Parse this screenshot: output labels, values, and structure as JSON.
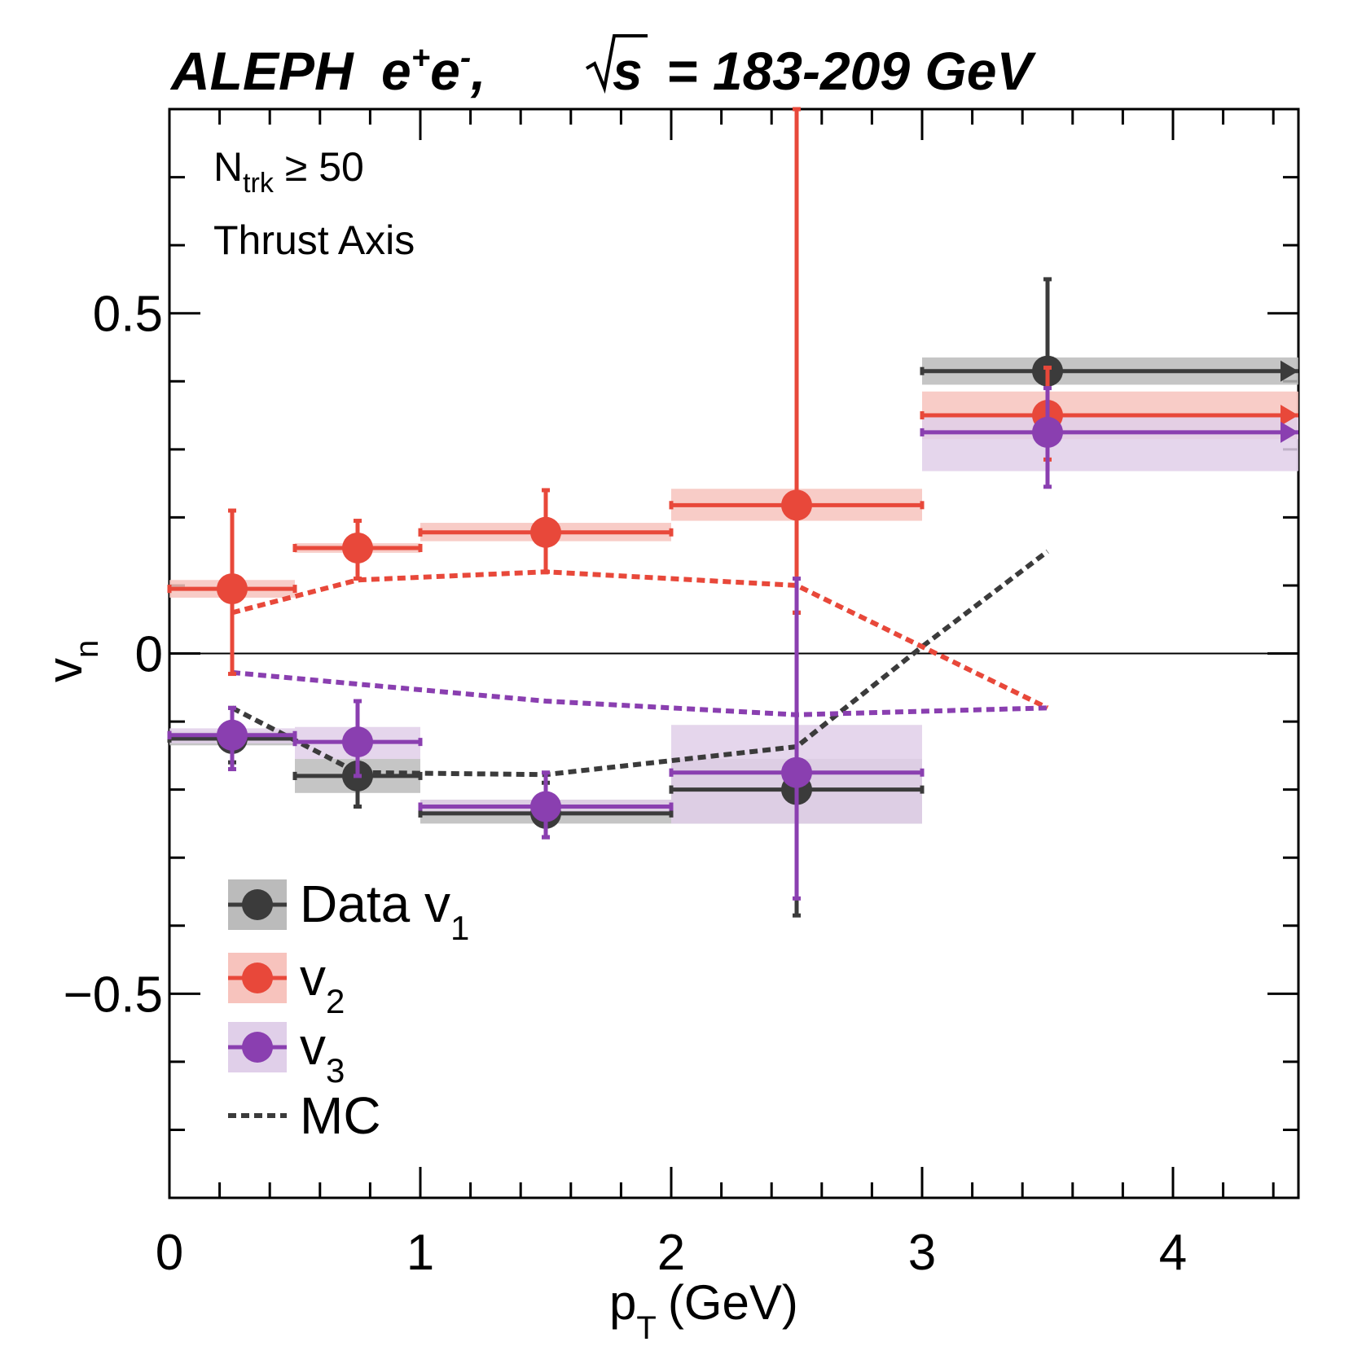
{
  "chart_data": {
    "type": "scatter",
    "title": {
      "experiment": "ALEPH",
      "beam": "e",
      "beam_sup1": "+",
      "beam2": "e",
      "beam_sup2": "-",
      "sep": ",",
      "sqrt_symbol": "√",
      "sqrt_arg": "s",
      "energy": "= 183-209 GeV"
    },
    "annotations": {
      "ntrk_main": "N",
      "ntrk_sub": "trk",
      "ntrk_cut": "≥ 50",
      "axis_type": "Thrust Axis"
    },
    "xlabel": {
      "main": "p",
      "sub": "T",
      "unit": "(GeV)"
    },
    "ylabel": {
      "main": "v",
      "sub": "n"
    },
    "xlim": [
      0,
      4.5
    ],
    "ylim": [
      -0.8,
      0.8
    ],
    "x_ticks": [
      {
        "value": 0,
        "label": "0"
      },
      {
        "value": 1,
        "label": "1"
      },
      {
        "value": 2,
        "label": "2"
      },
      {
        "value": 3,
        "label": "3"
      },
      {
        "value": 4,
        "label": "4"
      }
    ],
    "y_ticks": [
      {
        "value": 0.5,
        "label": "0.5"
      },
      {
        "value": 0,
        "label": "0"
      },
      {
        "value": -0.5,
        "label": "−0.5"
      }
    ],
    "zero_line": true,
    "series": [
      {
        "name": "Data v1",
        "legend_main": "Data v",
        "legend_sub": "1",
        "color": "#3b3b3b",
        "box_color": "#bbbbbb",
        "points": [
          {
            "x": 0.25,
            "xlo": 0,
            "xhi": 0.5,
            "y": -0.125,
            "ylo": -0.16,
            "yhi": -0.08,
            "syslo": -0.135,
            "syshi": -0.115
          },
          {
            "x": 0.75,
            "xlo": 0.5,
            "xhi": 1.0,
            "y": -0.18,
            "ylo": -0.225,
            "yhi": -0.14,
            "syslo": -0.205,
            "syshi": -0.155
          },
          {
            "x": 1.5,
            "xlo": 1.0,
            "xhi": 2.0,
            "y": -0.235,
            "ylo": -0.27,
            "yhi": -0.19,
            "syslo": -0.25,
            "syshi": -0.215
          },
          {
            "x": 2.5,
            "xlo": 2.0,
            "xhi": 3.0,
            "y": -0.2,
            "ylo": -0.385,
            "yhi": 0.06,
            "syslo": -0.25,
            "syshi": -0.155
          },
          {
            "x": 3.5,
            "xlo": 3.0,
            "xhi": 4.5,
            "y": 0.415,
            "ylo": 0.345,
            "yhi": 0.55,
            "syslo": 0.395,
            "syshi": 0.435,
            "overflow": true
          }
        ]
      },
      {
        "name": "v2",
        "legend_main": "v",
        "legend_sub": "2",
        "color": "#e8483a",
        "box_color": "#f7c3bd",
        "points": [
          {
            "x": 0.25,
            "xlo": 0,
            "xhi": 0.5,
            "y": 0.095,
            "ylo": -0.03,
            "yhi": 0.21,
            "syslo": 0.082,
            "syshi": 0.108
          },
          {
            "x": 0.75,
            "xlo": 0.5,
            "xhi": 1.0,
            "y": 0.155,
            "ylo": 0.11,
            "yhi": 0.195,
            "syslo": 0.148,
            "syshi": 0.162
          },
          {
            "x": 1.5,
            "xlo": 1.0,
            "xhi": 2.0,
            "y": 0.178,
            "ylo": 0.12,
            "yhi": 0.24,
            "syslo": 0.165,
            "syshi": 0.192
          },
          {
            "x": 2.5,
            "xlo": 2.0,
            "xhi": 3.0,
            "y": 0.218,
            "ylo": 0.06,
            "yhi": 0.8,
            "syslo": 0.195,
            "syshi": 0.242
          },
          {
            "x": 3.5,
            "xlo": 3.0,
            "xhi": 4.5,
            "y": 0.35,
            "ylo": 0.285,
            "yhi": 0.42,
            "syslo": 0.315,
            "syshi": 0.385,
            "overflow": true
          }
        ]
      },
      {
        "name": "v3",
        "legend_main": "v",
        "legend_sub": "3",
        "color": "#8a3fb0",
        "box_color": "#e0cfe9",
        "points": [
          {
            "x": 0.25,
            "xlo": 0,
            "xhi": 0.5,
            "y": -0.12,
            "ylo": -0.17,
            "yhi": -0.08,
            "syslo": -0.132,
            "syshi": -0.11
          },
          {
            "x": 0.75,
            "xlo": 0.5,
            "xhi": 1.0,
            "y": -0.13,
            "ylo": -0.18,
            "yhi": -0.07,
            "syslo": -0.155,
            "syshi": -0.108
          },
          {
            "x": 1.5,
            "xlo": 1.0,
            "xhi": 2.0,
            "y": -0.225,
            "ylo": -0.27,
            "yhi": -0.175,
            "syslo": -0.235,
            "syshi": -0.215
          },
          {
            "x": 2.5,
            "xlo": 2.0,
            "xhi": 3.0,
            "y": -0.175,
            "ylo": -0.36,
            "yhi": 0.11,
            "syslo": -0.25,
            "syshi": -0.105
          },
          {
            "x": 3.5,
            "xlo": 3.0,
            "xhi": 4.5,
            "y": 0.325,
            "ylo": 0.245,
            "yhi": 0.39,
            "syslo": 0.268,
            "syshi": 0.35,
            "overflow": true
          }
        ]
      }
    ],
    "mc_series": [
      {
        "name": "MC v1",
        "color": "#3b3b3b",
        "x": [
          0.25,
          0.75,
          1.5,
          2.5,
          3.0,
          3.5
        ],
        "y": [
          -0.08,
          -0.175,
          -0.178,
          -0.137,
          0.01,
          0.15
        ]
      },
      {
        "name": "MC v2",
        "color": "#e8483a",
        "x": [
          0.25,
          0.75,
          1.5,
          2.5,
          3.5
        ],
        "y": [
          0.06,
          0.108,
          0.12,
          0.1,
          -0.08
        ]
      },
      {
        "name": "MC v3",
        "color": "#8a3fb0",
        "x": [
          0.25,
          0.75,
          1.5,
          2.5,
          3.5
        ],
        "y": [
          -0.028,
          -0.045,
          -0.07,
          -0.09,
          -0.08
        ]
      }
    ],
    "legend": {
      "placement": "bottom-left",
      "mc_label": "MC"
    }
  }
}
